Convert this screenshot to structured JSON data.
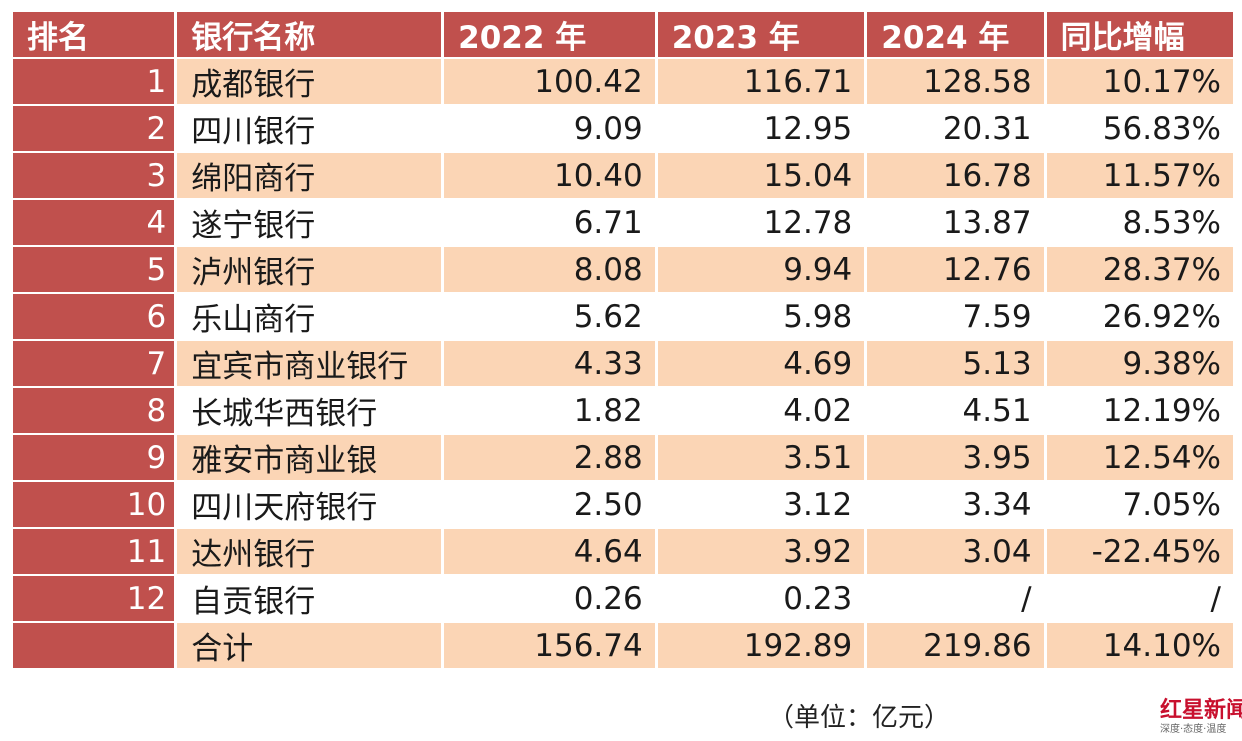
{
  "table": {
    "headers": [
      "排名",
      "银行名称",
      "2022 年",
      "2023 年",
      "2024 年",
      "同比增幅"
    ],
    "rows": [
      {
        "rank": "1",
        "name": "成都银行",
        "y2022": "100.42",
        "y2023": "116.71",
        "y2024": "128.58",
        "growth": "10.17%"
      },
      {
        "rank": "2",
        "name": "四川银行",
        "y2022": "9.09",
        "y2023": "12.95",
        "y2024": "20.31",
        "growth": "56.83%"
      },
      {
        "rank": "3",
        "name": "绵阳商行",
        "y2022": "10.40",
        "y2023": "15.04",
        "y2024": "16.78",
        "growth": "11.57%"
      },
      {
        "rank": "4",
        "name": "遂宁银行",
        "y2022": "6.71",
        "y2023": "12.78",
        "y2024": "13.87",
        "growth": "8.53%"
      },
      {
        "rank": "5",
        "name": "泸州银行",
        "y2022": "8.08",
        "y2023": "9.94",
        "y2024": "12.76",
        "growth": "28.37%"
      },
      {
        "rank": "6",
        "name": "乐山商行",
        "y2022": "5.62",
        "y2023": "5.98",
        "y2024": "7.59",
        "growth": "26.92%"
      },
      {
        "rank": "7",
        "name": "宜宾市商业银行",
        "y2022": "4.33",
        "y2023": "4.69",
        "y2024": "5.13",
        "growth": "9.38%"
      },
      {
        "rank": "8",
        "name": "长城华西银行",
        "y2022": "1.82",
        "y2023": "4.02",
        "y2024": "4.51",
        "growth": "12.19%"
      },
      {
        "rank": "9",
        "name": "雅安市商业银",
        "y2022": "2.88",
        "y2023": "3.51",
        "y2024": "3.95",
        "growth": "12.54%"
      },
      {
        "rank": "10",
        "name": "四川天府银行",
        "y2022": "2.50",
        "y2023": "3.12",
        "y2024": "3.34",
        "growth": "7.05%"
      },
      {
        "rank": "11",
        "name": "达州银行",
        "y2022": "4.64",
        "y2023": "3.92",
        "y2024": "3.04",
        "growth": "-22.45%"
      },
      {
        "rank": "12",
        "name": "自贡银行",
        "y2022": "0.26",
        "y2023": "0.23",
        "y2024": "/",
        "growth": "/"
      }
    ],
    "total": {
      "rank": "",
      "name": "合计",
      "y2022": "156.74",
      "y2023": "192.89",
      "y2024": "219.86",
      "growth": "14.10%"
    }
  },
  "unit_note": "（单位：亿元）",
  "logo": {
    "main": "红星新闻",
    "sub": "深度·态度·温度"
  },
  "colors": {
    "header_bg": "#c0504d",
    "stripe": "#fbd5b5",
    "text": "#1a1a1a"
  },
  "chart_data": {
    "type": "table",
    "columns": [
      "排名",
      "银行名称",
      "2022 年",
      "2023 年",
      "2024 年",
      "同比增幅"
    ],
    "rows": [
      [
        "1",
        "成都银行",
        100.42,
        116.71,
        128.58,
        "10.17%"
      ],
      [
        "2",
        "四川银行",
        9.09,
        12.95,
        20.31,
        "56.83%"
      ],
      [
        "3",
        "绵阳商行",
        10.4,
        15.04,
        16.78,
        "11.57%"
      ],
      [
        "4",
        "遂宁银行",
        6.71,
        12.78,
        13.87,
        "8.53%"
      ],
      [
        "5",
        "泸州银行",
        8.08,
        9.94,
        12.76,
        "28.37%"
      ],
      [
        "6",
        "乐山商行",
        5.62,
        5.98,
        7.59,
        "26.92%"
      ],
      [
        "7",
        "宜宾市商业银行",
        4.33,
        4.69,
        5.13,
        "9.38%"
      ],
      [
        "8",
        "长城华西银行",
        1.82,
        4.02,
        4.51,
        "12.19%"
      ],
      [
        "9",
        "雅安市商业银",
        2.88,
        3.51,
        3.95,
        "12.54%"
      ],
      [
        "10",
        "四川天府银行",
        2.5,
        3.12,
        3.34,
        "7.05%"
      ],
      [
        "11",
        "达州银行",
        4.64,
        3.92,
        3.04,
        "-22.45%"
      ],
      [
        "12",
        "自贡银行",
        0.26,
        0.23,
        "/",
        "/"
      ],
      [
        "",
        "合计",
        156.74,
        192.89,
        219.86,
        "14.10%"
      ]
    ],
    "unit": "（单位：亿元）"
  }
}
